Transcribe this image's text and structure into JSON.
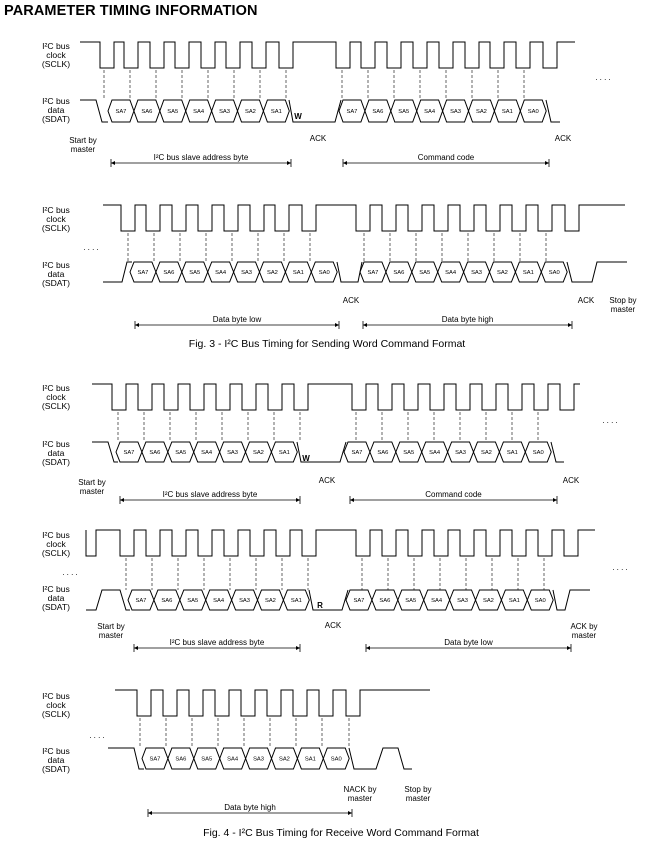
{
  "title": "PARAMETER TIMING INFORMATION",
  "signal_labels": {
    "clock": [
      "I²C bus",
      "clock",
      "(SCLK)"
    ],
    "data": [
      "I²C bus",
      "data",
      "(SDAT)"
    ]
  },
  "captions": {
    "fig3": "Fig. 3 - I²C Bus Timing for Sending Word Command Format",
    "fig4": "Fig. 4 - I²C Bus Timing for Receive Word Command Format"
  },
  "bit_labels_addr": [
    "SA7",
    "SA6",
    "SA5",
    "SA4",
    "SA3",
    "SA2",
    "SA1"
  ],
  "bit_labels_byte": [
    "SA7",
    "SA6",
    "SA5",
    "SA4",
    "SA3",
    "SA2",
    "SA1",
    "SA0"
  ],
  "markers": {
    "write": "W",
    "read": "R",
    "dots": ". . . ."
  },
  "annotations": {
    "start_by_master": [
      "Start by",
      "master"
    ],
    "stop_by_master": [
      "Stop by",
      "master"
    ],
    "ack": "ACK",
    "ack_by_master": [
      "ACK by",
      "master"
    ],
    "nack_by_master": [
      "NACK by",
      "master"
    ]
  },
  "ranges": {
    "slave_address": "I²C bus slave address byte",
    "command_code": "Command code",
    "data_low": "Data byte low",
    "data_high": "Data byte high"
  }
}
